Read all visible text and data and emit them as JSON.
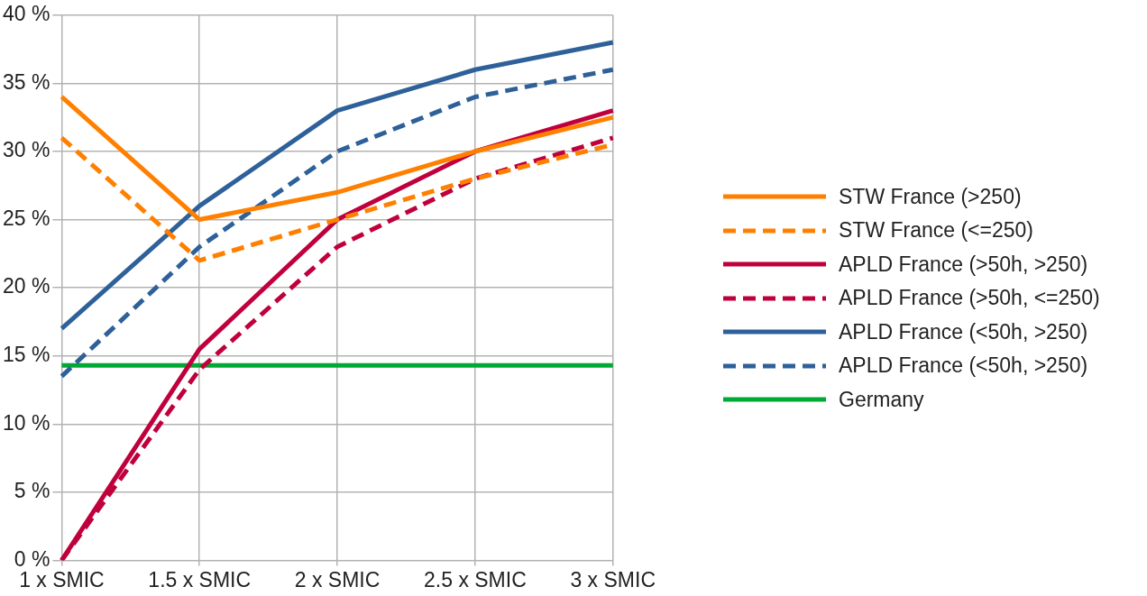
{
  "chart_data": {
    "type": "line",
    "categories": [
      "1 x SMIC",
      "1.5 x SMIC",
      "2 x SMIC",
      "2.5 x SMIC",
      "3 x SMIC"
    ],
    "series": [
      {
        "name": "STW France (>250)",
        "color": "#ff8000",
        "line_style": "solid",
        "values": [
          34,
          25,
          27,
          30,
          32.5
        ]
      },
      {
        "name": "STW France (<=250)",
        "color": "#ff8000",
        "line_style": "dashed",
        "values": [
          31,
          22,
          25,
          28,
          30.5
        ]
      },
      {
        "name": "APLD France (>50h, >250)",
        "color": "#c0003c",
        "line_style": "solid",
        "values": [
          0,
          15.5,
          25,
          30,
          33
        ]
      },
      {
        "name": "APLD France (>50h, <=250)",
        "color": "#c0003c",
        "line_style": "dashed",
        "values": [
          0,
          14,
          23,
          28,
          31
        ]
      },
      {
        "name": "APLD France (<50h, >250)",
        "color": "#2e6099",
        "line_style": "solid",
        "values": [
          17,
          26,
          33,
          36,
          38
        ]
      },
      {
        "name": "APLD France (<50h, >250)",
        "color": "#2e6099",
        "line_style": "dashed",
        "values": [
          13.5,
          23,
          30,
          34,
          36
        ]
      },
      {
        "name": "Germany",
        "color": "#00a933",
        "line_style": "solid",
        "values": [
          14.3,
          14.3,
          14.3,
          14.3,
          14.3
        ]
      }
    ],
    "ylim": [
      0,
      40
    ],
    "yticks": [
      {
        "value": 0,
        "label": "0 %"
      },
      {
        "value": 5,
        "label": "5 %"
      },
      {
        "value": 10,
        "label": "10 %"
      },
      {
        "value": 15,
        "label": "15 %"
      },
      {
        "value": 20,
        "label": "20 %"
      },
      {
        "value": 25,
        "label": "25 %"
      },
      {
        "value": 30,
        "label": "30 %"
      },
      {
        "value": 35,
        "label": "35 %"
      },
      {
        "value": 40,
        "label": "40 %"
      }
    ],
    "grid": true,
    "legend": "right",
    "marker": "none"
  }
}
